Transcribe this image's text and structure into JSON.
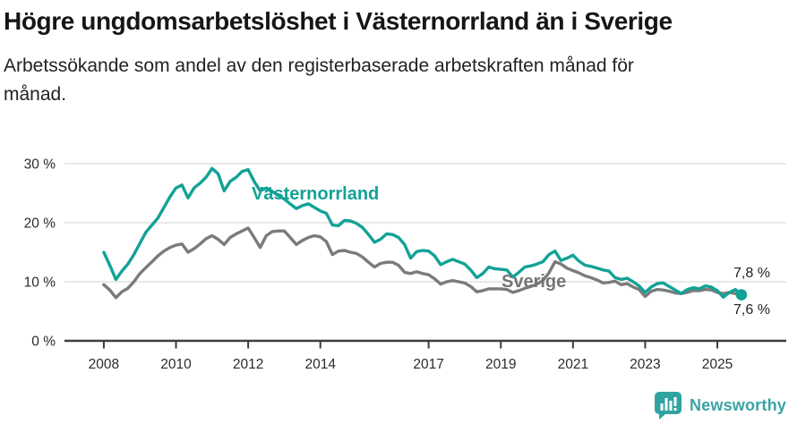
{
  "header": {
    "title": "Högre ungdomsarbetslöshet i Västernorrland än i Sverige",
    "subtitle": "Arbetssökande som andel av den registerbaserade arbetskraften månad för månad."
  },
  "footer": {
    "brand": "Newsworthy"
  },
  "colors": {
    "vasternorrland": "#12a296",
    "sverige": "#7b7b7b",
    "grid": "#dcdcdc",
    "axis": "#3d3d3d",
    "tick_label": "#2b2b2b",
    "title_text": "#161616",
    "end_label": "#1f1f1f",
    "brand_teal": "#35a3a2"
  },
  "chart_data": {
    "type": "line",
    "title": "Högre ungdomsarbetslöshet i Västernorrland än i Sverige",
    "xlabel": "",
    "ylabel": "",
    "x_unit": "year",
    "y_unit": "%",
    "x_start": 2008.0,
    "x_step": 0.166667,
    "series": [
      {
        "name": "Västernorrland",
        "color": "#12a296",
        "end_value_label": "7,8 %",
        "values": [
          15.0,
          12.8,
          10.4,
          11.8,
          13.0,
          14.6,
          16.5,
          18.4,
          19.6,
          20.8,
          22.6,
          24.4,
          25.9,
          26.4,
          24.2,
          25.9,
          26.7,
          27.7,
          29.2,
          28.3,
          25.4,
          27.0,
          27.7,
          28.7,
          29.0,
          27.0,
          25.4,
          25.9,
          25.3,
          24.6,
          24.0,
          23.2,
          22.4,
          22.9,
          23.2,
          22.6,
          22.0,
          21.6,
          19.6,
          19.5,
          20.4,
          20.3,
          19.9,
          19.2,
          18.0,
          16.7,
          17.2,
          18.1,
          18.0,
          17.5,
          16.3,
          14.0,
          15.1,
          15.3,
          15.2,
          14.4,
          12.9,
          13.4,
          13.8,
          13.4,
          13.0,
          12.0,
          10.7,
          11.4,
          12.5,
          12.2,
          12.1,
          12.0,
          10.8,
          11.6,
          12.5,
          12.7,
          13.0,
          13.4,
          14.6,
          15.2,
          13.6,
          14.0,
          14.5,
          13.5,
          12.8,
          12.6,
          12.3,
          12.0,
          11.8,
          10.7,
          10.4,
          10.6,
          10.0,
          9.3,
          8.2,
          9.1,
          9.7,
          9.8,
          9.2,
          8.6,
          8.0,
          8.7,
          9.0,
          8.8,
          9.3,
          9.1,
          8.5,
          7.4,
          8.2,
          8.7,
          7.8
        ]
      },
      {
        "name": "Sverige",
        "color": "#7b7b7b",
        "end_value_label": "7,6 %",
        "values": [
          9.5,
          8.6,
          7.3,
          8.3,
          8.9,
          10.0,
          11.4,
          12.4,
          13.4,
          14.4,
          15.2,
          15.8,
          16.2,
          16.4,
          15.0,
          15.6,
          16.4,
          17.3,
          17.8,
          17.2,
          16.3,
          17.5,
          18.1,
          18.6,
          19.1,
          17.5,
          15.8,
          17.8,
          18.5,
          18.6,
          18.6,
          17.5,
          16.3,
          17.0,
          17.5,
          17.8,
          17.6,
          16.8,
          14.6,
          15.2,
          15.3,
          15.0,
          14.8,
          14.2,
          13.3,
          12.5,
          13.1,
          13.3,
          13.3,
          12.8,
          11.6,
          11.4,
          11.7,
          11.4,
          11.2,
          10.5,
          9.6,
          10.0,
          10.2,
          10.0,
          9.8,
          9.2,
          8.3,
          8.5,
          8.8,
          8.8,
          8.8,
          8.7,
          8.2,
          8.5,
          8.9,
          9.2,
          9.6,
          10.2,
          11.5,
          13.4,
          13.0,
          12.3,
          11.9,
          11.5,
          11.0,
          10.7,
          10.3,
          9.8,
          9.9,
          10.1,
          9.5,
          9.7,
          9.1,
          8.7,
          7.5,
          8.4,
          8.7,
          8.6,
          8.4,
          8.1,
          8.0,
          8.2,
          8.5,
          8.5,
          8.7,
          8.6,
          8.2,
          8.0,
          8.2,
          8.0,
          7.6
        ]
      }
    ],
    "end_labels": {
      "vasternorrland": "7,8 %",
      "sverige": "7,6 %"
    },
    "axes": {
      "xlim": [
        2006.91,
        2026.91
      ],
      "ylim": [
        0,
        30
      ],
      "grid": true,
      "legend": "inline-labels",
      "x_ticks": [
        {
          "v": 2008,
          "label": "2008"
        },
        {
          "v": 2010,
          "label": "2010"
        },
        {
          "v": 2012,
          "label": "2012"
        },
        {
          "v": 2014,
          "label": "2014"
        },
        {
          "v": 2017,
          "label": "2017"
        },
        {
          "v": 2019,
          "label": "2019"
        },
        {
          "v": 2021,
          "label": "2021"
        },
        {
          "v": 2023,
          "label": "2023"
        },
        {
          "v": 2025,
          "label": "2025"
        }
      ],
      "y_ticks": [
        {
          "v": 0,
          "label": "0 %"
        },
        {
          "v": 10,
          "label": "10 %"
        },
        {
          "v": 20,
          "label": "20 %"
        },
        {
          "v": 30,
          "label": "30 %"
        }
      ]
    }
  }
}
